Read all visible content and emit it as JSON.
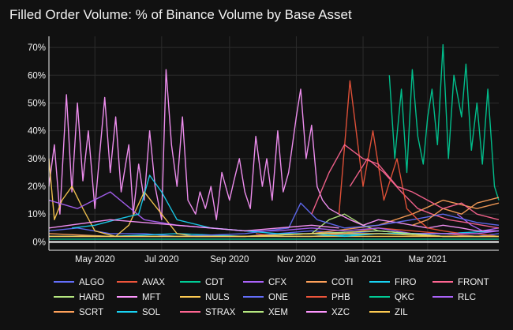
{
  "chart_data": {
    "type": "line",
    "title": "Filled Order Volume: % of Binance Volume by Base Asset",
    "xlabel": "",
    "ylabel": "",
    "x_range": [
      "2020-03-20",
      "2021-05-05"
    ],
    "x_ticks": [
      {
        "date": "2020-05-01",
        "label": "May 2020"
      },
      {
        "date": "2020-07-01",
        "label": "Jul 2020"
      },
      {
        "date": "2020-09-01",
        "label": "Sep 2020"
      },
      {
        "date": "2020-11-01",
        "label": "Nov 2020"
      },
      {
        "date": "2021-01-01",
        "label": "Jan 2021"
      },
      {
        "date": "2021-03-01",
        "label": "Mar 2021"
      }
    ],
    "ylim": [
      -3,
      74
    ],
    "y_ticks": [
      {
        "value": 0,
        "label": "0%"
      },
      {
        "value": 10,
        "label": "10%"
      },
      {
        "value": 20,
        "label": "20%"
      },
      {
        "value": 30,
        "label": "30%"
      },
      {
        "value": 40,
        "label": "40%"
      },
      {
        "value": 50,
        "label": "50%"
      },
      {
        "value": 60,
        "label": "60%"
      },
      {
        "value": 70,
        "label": "70%"
      }
    ],
    "grid": true,
    "legend_position": "bottom",
    "series": [
      {
        "name": "ALGO",
        "color": "#636efa",
        "x": [
          "2020-03-20",
          "2020-04-15",
          "2020-05-15",
          "2020-06-15",
          "2020-07-15",
          "2020-08-15",
          "2020-09-15",
          "2020-10-15",
          "2020-11-15",
          "2020-12-15",
          "2021-01-15",
          "2021-02-15",
          "2021-03-15",
          "2021-04-15",
          "2021-05-05"
        ],
        "y": [
          4,
          5,
          3,
          3,
          2,
          2,
          2,
          3,
          4,
          3,
          4,
          3,
          3,
          2,
          3
        ]
      },
      {
        "name": "AVAX",
        "color": "#ef553b",
        "x": [
          "2020-09-25",
          "2020-10-15",
          "2020-11-15",
          "2020-12-15",
          "2021-01-15",
          "2021-02-15",
          "2021-03-15",
          "2021-04-15",
          "2021-05-05"
        ],
        "y": [
          3,
          2,
          2,
          3,
          5,
          4,
          3,
          2,
          2
        ]
      },
      {
        "name": "CDT",
        "color": "#00cc96",
        "x": [
          "2020-03-20",
          "2020-05-15",
          "2020-07-15",
          "2020-09-15",
          "2020-11-15",
          "2021-01-15",
          "2021-03-15",
          "2021-05-05"
        ],
        "y": [
          1,
          1,
          1,
          1,
          1,
          1,
          1,
          1
        ]
      },
      {
        "name": "CFX",
        "color": "#ab63fa",
        "x": [
          "2021-03-28",
          "2021-04-10",
          "2021-04-20",
          "2021-05-05"
        ],
        "y": [
          10,
          6,
          4,
          5
        ]
      },
      {
        "name": "COTI",
        "color": "#ffa15a",
        "x": [
          "2020-03-20",
          "2020-05-15",
          "2020-07-15",
          "2020-09-15",
          "2020-11-15",
          "2021-01-15",
          "2021-02-15",
          "2021-03-15",
          "2021-04-15",
          "2021-05-05"
        ],
        "y": [
          3,
          2,
          2,
          2,
          3,
          6,
          10,
          15,
          12,
          14
        ]
      },
      {
        "name": "FIRO",
        "color": "#19d3f3",
        "x": [
          "2020-03-20",
          "2020-05-15",
          "2020-07-15",
          "2020-09-15",
          "2020-11-15",
          "2021-01-15",
          "2021-03-15",
          "2021-05-05"
        ],
        "y": [
          2,
          2,
          3,
          2,
          2,
          3,
          3,
          4
        ]
      },
      {
        "name": "FRONT",
        "color": "#ff6692",
        "x": [
          "2020-12-20",
          "2021-01-05",
          "2021-01-20",
          "2021-02-05",
          "2021-02-20",
          "2021-03-05",
          "2021-03-20",
          "2021-04-05",
          "2021-04-20",
          "2021-05-05"
        ],
        "y": [
          20,
          30,
          25,
          18,
          12,
          10,
          8,
          7,
          6,
          5
        ]
      },
      {
        "name": "HARD",
        "color": "#b6e880",
        "x": [
          "2020-11-15",
          "2020-12-01",
          "2020-12-15",
          "2021-01-01",
          "2021-01-15",
          "2021-02-15",
          "2021-03-15",
          "2021-04-15",
          "2021-05-05"
        ],
        "y": [
          3,
          8,
          10,
          6,
          4,
          3,
          2,
          2,
          2
        ]
      },
      {
        "name": "MFT",
        "color": "#ff97ff",
        "x": [
          "2020-03-20",
          "2020-03-25",
          "2020-03-30",
          "2020-04-05",
          "2020-04-10",
          "2020-04-15",
          "2020-04-20",
          "2020-04-25",
          "2020-05-01",
          "2020-05-05",
          "2020-05-10",
          "2020-05-15",
          "2020-05-20",
          "2020-05-25",
          "2020-06-01",
          "2020-06-05",
          "2020-06-10",
          "2020-06-15",
          "2020-06-20",
          "2020-06-25",
          "2020-07-01",
          "2020-07-05",
          "2020-07-10",
          "2020-07-15",
          "2020-07-20",
          "2020-07-25",
          "2020-08-01",
          "2020-08-05",
          "2020-08-10",
          "2020-08-15",
          "2020-08-20",
          "2020-08-25",
          "2020-09-01",
          "2020-09-05",
          "2020-09-10",
          "2020-09-15",
          "2020-09-20",
          "2020-09-25",
          "2020-10-01",
          "2020-10-05",
          "2020-10-10",
          "2020-10-15",
          "2020-10-20",
          "2020-10-25",
          "2020-11-01",
          "2020-11-05",
          "2020-11-10",
          "2020-11-15",
          "2020-11-20",
          "2020-11-25",
          "2020-12-01",
          "2020-12-10",
          "2020-12-20",
          "2021-01-01",
          "2021-01-15",
          "2021-02-01",
          "2021-02-15",
          "2021-03-01",
          "2021-03-15",
          "2021-04-01",
          "2021-04-15",
          "2021-05-05"
        ],
        "y": [
          20,
          35,
          10,
          53,
          18,
          50,
          22,
          40,
          12,
          30,
          52,
          25,
          45,
          18,
          35,
          10,
          28,
          15,
          40,
          20,
          8,
          62,
          35,
          20,
          45,
          15,
          10,
          18,
          12,
          20,
          8,
          25,
          15,
          22,
          30,
          18,
          12,
          38,
          20,
          30,
          15,
          40,
          18,
          25,
          45,
          55,
          30,
          42,
          20,
          15,
          12,
          10,
          8,
          6,
          8,
          7,
          6,
          5,
          6,
          5,
          4,
          4
        ]
      },
      {
        "name": "NULS",
        "color": "#fecb52",
        "x": [
          "2020-03-20",
          "2020-03-25",
          "2020-04-01",
          "2020-04-10",
          "2020-04-20",
          "2020-05-01",
          "2020-05-10",
          "2020-05-20",
          "2020-06-01",
          "2020-06-15",
          "2020-07-01",
          "2020-07-15",
          "2020-08-01",
          "2020-09-01",
          "2020-10-01",
          "2020-11-01",
          "2020-12-01",
          "2021-01-01",
          "2021-02-01",
          "2021-03-01",
          "2021-04-01",
          "2021-05-05"
        ],
        "y": [
          30,
          8,
          15,
          20,
          12,
          4,
          3,
          2,
          6,
          18,
          10,
          3,
          2,
          2,
          2,
          2,
          2,
          2,
          2,
          2,
          2,
          2
        ]
      },
      {
        "name": "ONE",
        "color": "#636efa",
        "x": [
          "2020-03-20",
          "2020-05-15",
          "2020-07-15",
          "2020-09-15",
          "2020-10-25",
          "2020-11-05",
          "2020-11-20",
          "2020-12-15",
          "2021-01-15",
          "2021-02-15",
          "2021-03-15",
          "2021-04-15",
          "2021-05-05"
        ],
        "y": [
          2,
          2,
          2,
          3,
          5,
          14,
          8,
          5,
          6,
          8,
          10,
          7,
          6
        ]
      },
      {
        "name": "PHB",
        "color": "#ef553b",
        "x": [
          "2020-12-10",
          "2020-12-20",
          "2021-01-01",
          "2021-01-10",
          "2021-01-20",
          "2021-02-01",
          "2021-02-10",
          "2021-02-20",
          "2021-03-01",
          "2021-03-15",
          "2021-04-01",
          "2021-04-15",
          "2021-05-05"
        ],
        "y": [
          10,
          58,
          20,
          40,
          15,
          30,
          12,
          8,
          5,
          4,
          3,
          3,
          2
        ]
      },
      {
        "name": "QKC",
        "color": "#00cc96",
        "x": [
          "2021-01-25",
          "2021-01-30",
          "2021-02-05",
          "2021-02-10",
          "2021-02-15",
          "2021-02-20",
          "2021-02-25",
          "2021-03-01",
          "2021-03-05",
          "2021-03-10",
          "2021-03-15",
          "2021-03-20",
          "2021-03-25",
          "2021-04-01",
          "2021-04-05",
          "2021-04-10",
          "2021-04-15",
          "2021-04-20",
          "2021-04-25",
          "2021-05-01",
          "2021-05-05"
        ],
        "y": [
          60,
          30,
          55,
          25,
          62,
          38,
          28,
          45,
          55,
          35,
          71,
          30,
          60,
          45,
          64,
          33,
          50,
          28,
          55,
          20,
          15
        ]
      },
      {
        "name": "RLC",
        "color": "#ab63fa",
        "x": [
          "2020-03-20",
          "2020-04-15",
          "2020-05-15",
          "2020-06-15",
          "2020-07-15",
          "2020-08-15",
          "2020-09-15",
          "2020-10-15",
          "2020-11-15",
          "2020-12-15",
          "2021-01-15",
          "2021-02-15",
          "2021-03-15",
          "2021-04-15",
          "2021-05-05"
        ],
        "y": [
          15,
          12,
          18,
          8,
          6,
          5,
          4,
          4,
          5,
          4,
          5,
          3,
          3,
          3,
          4
        ]
      },
      {
        "name": "SCRT",
        "color": "#ffa15a",
        "x": [
          "2021-02-15",
          "2021-03-01",
          "2021-03-15",
          "2021-04-01",
          "2021-04-15",
          "2021-05-05"
        ],
        "y": [
          6,
          8,
          12,
          10,
          14,
          16
        ]
      },
      {
        "name": "SOL",
        "color": "#19d3f3",
        "x": [
          "2020-04-10",
          "2020-05-01",
          "2020-05-20",
          "2020-06-10",
          "2020-06-20",
          "2020-07-01",
          "2020-07-15",
          "2020-08-15",
          "2020-09-15",
          "2020-10-15",
          "2020-11-15",
          "2020-12-15",
          "2021-01-15",
          "2021-02-15",
          "2021-03-15",
          "2021-04-15",
          "2021-05-05"
        ],
        "y": [
          5,
          6,
          8,
          10,
          24,
          18,
          8,
          5,
          4,
          3,
          3,
          2,
          3,
          3,
          2,
          2,
          2
        ]
      },
      {
        "name": "STRAX",
        "color": "#ff6692",
        "x": [
          "2020-11-15",
          "2020-12-01",
          "2020-12-15",
          "2021-01-01",
          "2021-01-15",
          "2021-02-01",
          "2021-02-15",
          "2021-03-01",
          "2021-03-15",
          "2021-04-01",
          "2021-04-15",
          "2021-05-05"
        ],
        "y": [
          10,
          25,
          35,
          30,
          28,
          20,
          18,
          15,
          12,
          14,
          10,
          8
        ]
      },
      {
        "name": "XEM",
        "color": "#b6e880",
        "x": [
          "2020-03-20",
          "2020-05-15",
          "2020-07-15",
          "2020-09-15",
          "2020-11-15",
          "2021-01-15",
          "2021-03-15",
          "2021-05-05"
        ],
        "y": [
          2,
          2,
          2,
          2,
          3,
          4,
          2,
          2
        ]
      },
      {
        "name": "XZC",
        "color": "#ff97ff",
        "x": [
          "2020-03-20",
          "2020-05-15",
          "2020-07-15",
          "2020-09-15",
          "2020-11-15",
          "2020-12-10"
        ],
        "y": [
          5,
          8,
          6,
          4,
          6,
          5
        ]
      },
      {
        "name": "ZIL",
        "color": "#fecb52",
        "x": [
          "2020-03-20",
          "2020-05-15",
          "2020-07-15",
          "2020-09-15",
          "2020-11-15",
          "2021-01-15",
          "2021-03-15",
          "2021-05-05"
        ],
        "y": [
          2,
          2,
          2,
          2,
          3,
          3,
          2,
          2
        ]
      }
    ]
  }
}
